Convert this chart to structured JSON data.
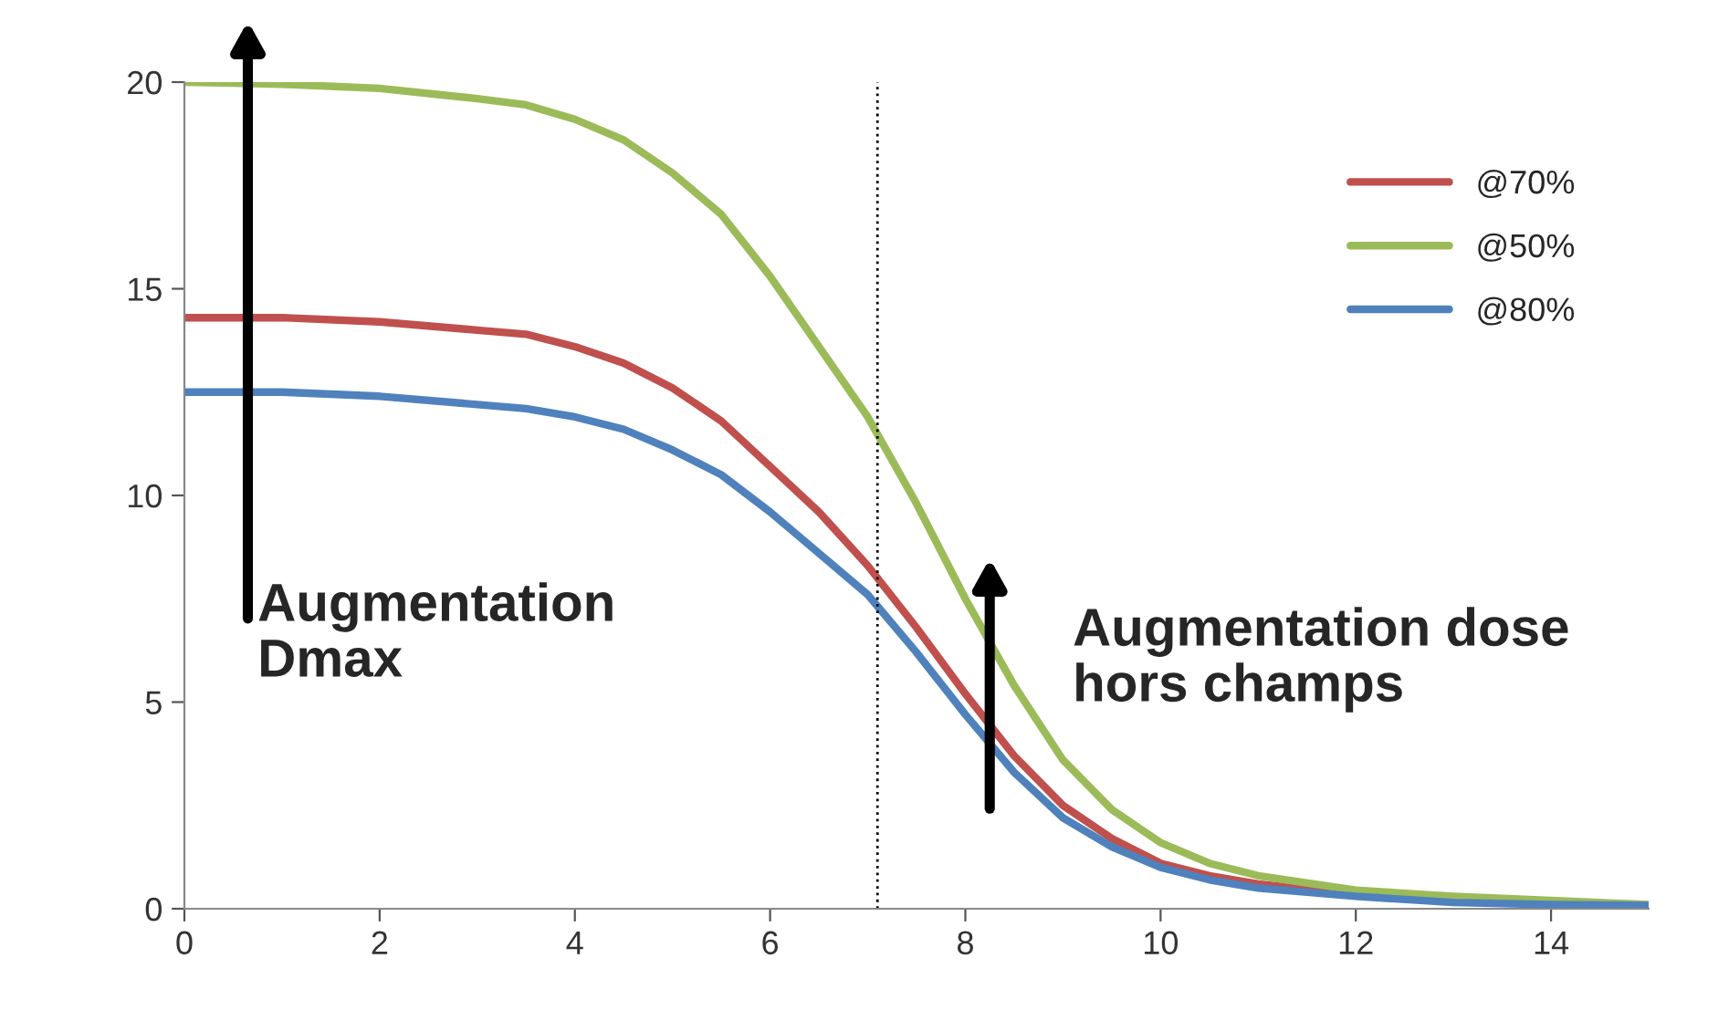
{
  "chart_data": {
    "type": "line",
    "x": [
      0,
      1,
      2,
      3,
      3.5,
      4,
      4.5,
      5,
      5.5,
      6,
      6.5,
      7,
      7.5,
      8,
      8.5,
      9,
      9.5,
      10,
      10.5,
      11,
      12,
      13,
      14,
      15
    ],
    "series": [
      {
        "name": "@70%",
        "color": "#c0504d",
        "values": [
          14.3,
          14.3,
          14.2,
          14.0,
          13.9,
          13.6,
          13.2,
          12.6,
          11.8,
          10.7,
          9.6,
          8.3,
          6.8,
          5.2,
          3.7,
          2.5,
          1.7,
          1.1,
          0.8,
          0.6,
          0.35,
          0.2,
          null,
          null
        ]
      },
      {
        "name": "@50%",
        "color": "#9bbb59",
        "values": [
          20.0,
          19.95,
          19.85,
          19.6,
          19.45,
          19.1,
          18.6,
          17.8,
          16.8,
          15.3,
          13.6,
          11.9,
          9.8,
          7.5,
          5.4,
          3.6,
          2.4,
          1.6,
          1.1,
          0.8,
          0.45,
          0.3,
          0.2,
          0.1
        ]
      },
      {
        "name": "@80%",
        "color": "#4f81bd",
        "values": [
          12.5,
          12.5,
          12.4,
          12.2,
          12.1,
          11.9,
          11.6,
          11.1,
          10.5,
          9.6,
          8.6,
          7.6,
          6.2,
          4.7,
          3.3,
          2.2,
          1.5,
          1.0,
          0.7,
          0.5,
          0.3,
          0.15,
          0.1,
          0.08
        ]
      }
    ],
    "xlim": [
      0,
      15
    ],
    "xticks": [
      0,
      2,
      4,
      6,
      8,
      10,
      12,
      14
    ],
    "ylim": [
      0,
      20
    ],
    "yticks": [
      0,
      5,
      10,
      15,
      20
    ],
    "ref_lines": [
      {
        "axis": "x",
        "value": 7.1,
        "color": "#000000",
        "line_style": "dotted"
      }
    ],
    "annotations": [
      "Augmentation\nDmax",
      "Augmentation dose\nhors champs"
    ],
    "legend": "top right",
    "grid": false,
    "marker": "none",
    "line_style": "solid"
  }
}
